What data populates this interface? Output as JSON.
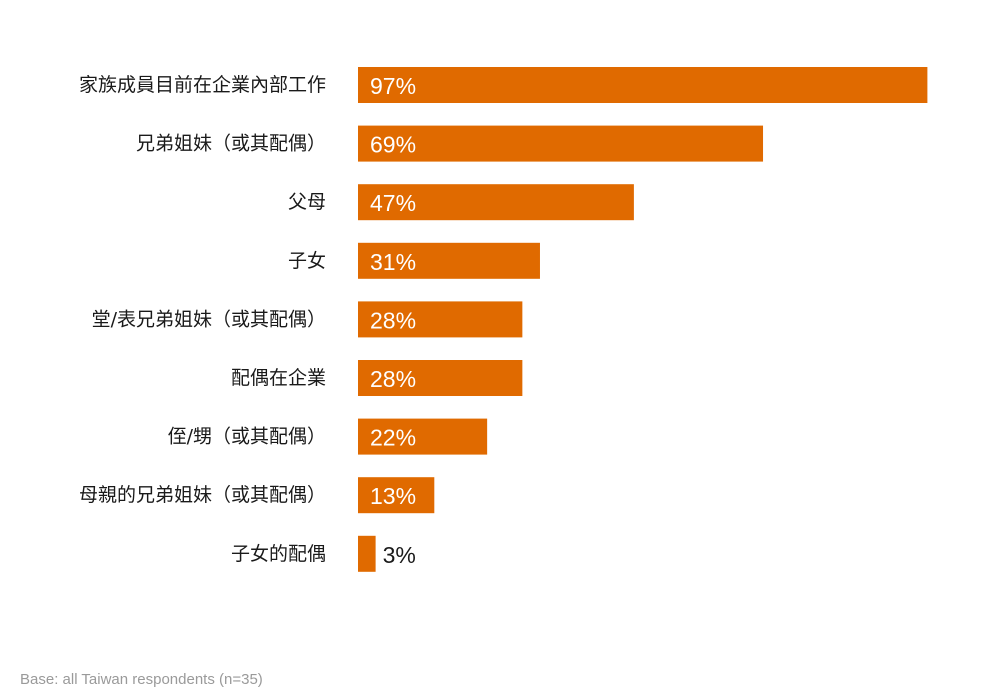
{
  "chart_data": {
    "type": "bar",
    "orientation": "horizontal",
    "categories": [
      "家族成員目前在企業內部工作",
      "兄弟姐妹（或其配偶）",
      "父母",
      "子女",
      "堂/表兄弟姐妹（或其配偶）",
      "配偶在企業",
      "侄/甥（或其配偶）",
      "母親的兄弟姐妹（或其配偶）",
      "子女的配偶"
    ],
    "values": [
      97,
      69,
      47,
      31,
      28,
      28,
      22,
      13,
      3
    ],
    "value_labels": [
      "97%",
      "69%",
      "47%",
      "31%",
      "28%",
      "28%",
      "22%",
      "13%",
      "3%"
    ],
    "xlim": [
      0,
      100
    ],
    "unit": "%",
    "grid": false,
    "legend": "none",
    "bar_color": "#e06a00",
    "label_color_inside": "#ffffff",
    "label_color_outside": "#1a1a1a",
    "category_label_color": "#1a1a1a"
  },
  "footnote": "Base: all Taiwan respondents (n=35)"
}
